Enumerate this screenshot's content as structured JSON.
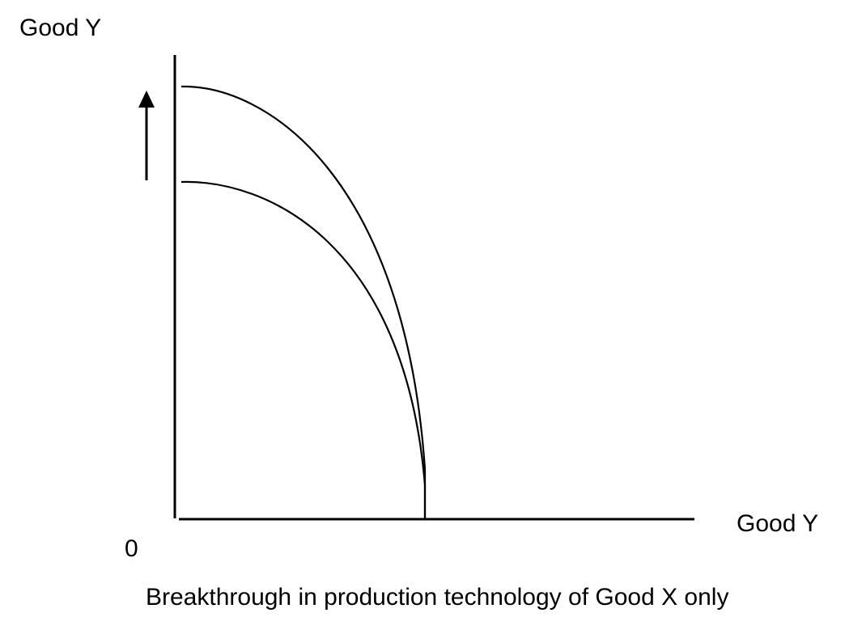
{
  "diagram": {
    "y_axis_label": "Good Y",
    "x_axis_label": "Good Y",
    "origin_label": "0",
    "caption": "Breakthrough in production technology of Good X only",
    "stroke_color": "#000000",
    "background_color": "#ffffff"
  }
}
